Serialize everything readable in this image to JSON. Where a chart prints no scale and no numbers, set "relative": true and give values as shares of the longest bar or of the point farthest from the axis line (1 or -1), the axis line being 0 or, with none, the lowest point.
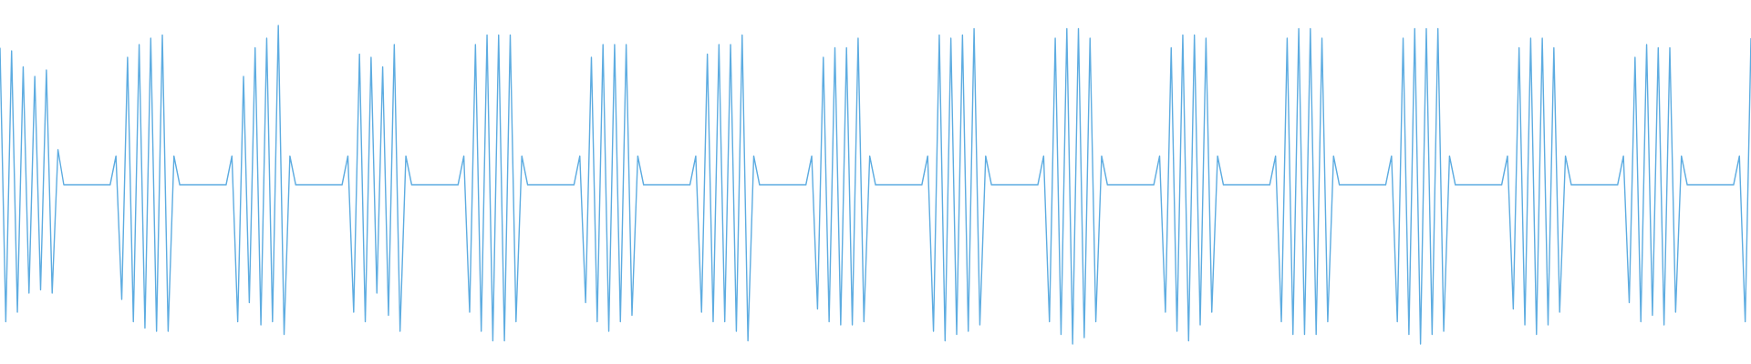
{
  "chart_data": {
    "type": "line",
    "relative": true,
    "categories": [
      null,
      null,
      null,
      null,
      null,
      null,
      null,
      null,
      null,
      null,
      null,
      null,
      null,
      null,
      null,
      null,
      null,
      null,
      null,
      null,
      null,
      null,
      null,
      null,
      null,
      null,
      null,
      null,
      null,
      null,
      null,
      null,
      null,
      null,
      null,
      null,
      null,
      null,
      null,
      null,
      null,
      null,
      null,
      null,
      null,
      null,
      null,
      null,
      null,
      null,
      null,
      null,
      null,
      null,
      null,
      null,
      null,
      null,
      null,
      null,
      null,
      null,
      null,
      null,
      null,
      null,
      null,
      null,
      null,
      null,
      null,
      null,
      null,
      null,
      null,
      null,
      null,
      null,
      null,
      null,
      null,
      null,
      null,
      null,
      null,
      null,
      null,
      null,
      null,
      null,
      null,
      null,
      null,
      null,
      null,
      null,
      null,
      null,
      null,
      null,
      null,
      null,
      null,
      null,
      null,
      null,
      null,
      null,
      null,
      null,
      null,
      null,
      null,
      null,
      null,
      null,
      null,
      null,
      null,
      null,
      null,
      null,
      null,
      null,
      null,
      null,
      null,
      null,
      null,
      null,
      null,
      null,
      null,
      null,
      null,
      null,
      null,
      null,
      null,
      null,
      null,
      null,
      null,
      null,
      null,
      null,
      null,
      null,
      null,
      null,
      null,
      null,
      null,
      null,
      null,
      null,
      null,
      null,
      null,
      null,
      null,
      null,
      null,
      null,
      null,
      null,
      null,
      null,
      null,
      null,
      null,
      null,
      null,
      null,
      null,
      null,
      null,
      null,
      null,
      null,
      null,
      null,
      null,
      null,
      null,
      null,
      null,
      null,
      null,
      null,
      null,
      null,
      null,
      null,
      null,
      null,
      null,
      null,
      null,
      null,
      null,
      null,
      null,
      null,
      null,
      null,
      null,
      null,
      null,
      null,
      null,
      null,
      null,
      null,
      null,
      null,
      null,
      null,
      null,
      null,
      null,
      null,
      null,
      null,
      null,
      null,
      null,
      null,
      null,
      null,
      null,
      null,
      null,
      null,
      null,
      null,
      null,
      null,
      null,
      null,
      null,
      null,
      null,
      null,
      null,
      null,
      null,
      null,
      null,
      null,
      null,
      null,
      null,
      null,
      null,
      null,
      null,
      null,
      null,
      null,
      null,
      null,
      null,
      null,
      null,
      null,
      null,
      null,
      null,
      null,
      null,
      null,
      null,
      null,
      null,
      null,
      null,
      null,
      null,
      null,
      null,
      null,
      null,
      null,
      null,
      null,
      null,
      null,
      null,
      null,
      null,
      null,
      null,
      null,
      null,
      null,
      null,
      null,
      null,
      null,
      null,
      null,
      null
    ],
    "series": [
      {
        "color": "#5dace1",
        "values": [
          0.93,
          0.07,
          0.92,
          0.1,
          0.87,
          0.16,
          0.84,
          0.17,
          0.86,
          0.16,
          0.61,
          0.5,
          0.5,
          0.5,
          0.5,
          0.5,
          0.5,
          0.5,
          0.5,
          0.5,
          0.59,
          0.14,
          0.9,
          0.07,
          0.94,
          0.05,
          0.96,
          0.04,
          0.97,
          0.04,
          0.59,
          0.5,
          0.5,
          0.5,
          0.5,
          0.5,
          0.5,
          0.5,
          0.5,
          0.5,
          0.59,
          0.07,
          0.84,
          0.13,
          0.93,
          0.06,
          0.96,
          0.07,
          1,
          0.03,
          0.59,
          0.5,
          0.5,
          0.5,
          0.5,
          0.5,
          0.5,
          0.5,
          0.5,
          0.5,
          0.59,
          0.1,
          0.91,
          0.07,
          0.9,
          0.16,
          0.87,
          0.09,
          0.94,
          0.04,
          0.59,
          0.5,
          0.5,
          0.5,
          0.5,
          0.5,
          0.5,
          0.5,
          0.5,
          0.5,
          0.59,
          0.1,
          0.94,
          0.04,
          0.97,
          0.01,
          0.97,
          0.01,
          0.97,
          0.07,
          0.59,
          0.5,
          0.5,
          0.5,
          0.5,
          0.5,
          0.5,
          0.5,
          0.5,
          0.5,
          0.59,
          0.13,
          0.9,
          0.07,
          0.94,
          0.04,
          0.94,
          0.07,
          0.94,
          0.09,
          0.59,
          0.5,
          0.5,
          0.5,
          0.5,
          0.5,
          0.5,
          0.5,
          0.5,
          0.5,
          0.59,
          0.1,
          0.91,
          0.07,
          0.94,
          0.07,
          0.94,
          0.04,
          0.97,
          0.01,
          0.59,
          0.5,
          0.5,
          0.5,
          0.5,
          0.5,
          0.5,
          0.5,
          0.5,
          0.5,
          0.59,
          0.11,
          0.9,
          0.07,
          0.93,
          0.06,
          0.93,
          0.06,
          0.96,
          0.07,
          0.59,
          0.5,
          0.5,
          0.5,
          0.5,
          0.5,
          0.5,
          0.5,
          0.5,
          0.5,
          0.59,
          0.04,
          0.97,
          0.01,
          0.96,
          0.03,
          0.97,
          0.04,
          0.99,
          0.06,
          0.59,
          0.5,
          0.5,
          0.5,
          0.5,
          0.5,
          0.5,
          0.5,
          0.5,
          0.5,
          0.59,
          0.07,
          0.96,
          0.03,
          0.99,
          0,
          0.99,
          0.02,
          0.96,
          0.07,
          0.59,
          0.5,
          0.5,
          0.5,
          0.5,
          0.5,
          0.5,
          0.5,
          0.5,
          0.5,
          0.59,
          0.1,
          0.93,
          0.04,
          0.97,
          0.01,
          0.97,
          0.06,
          0.96,
          0.1,
          0.59,
          0.5,
          0.5,
          0.5,
          0.5,
          0.5,
          0.5,
          0.5,
          0.5,
          0.5,
          0.59,
          0.07,
          0.96,
          0.03,
          0.99,
          0.03,
          0.99,
          0.03,
          0.96,
          0.07,
          0.59,
          0.5,
          0.5,
          0.5,
          0.5,
          0.5,
          0.5,
          0.5,
          0.5,
          0.5,
          0.59,
          0.07,
          0.96,
          0.03,
          0.99,
          0,
          0.99,
          0.03,
          0.99,
          0.04,
          0.59,
          0.5,
          0.5,
          0.5,
          0.5,
          0.5,
          0.5,
          0.5,
          0.5,
          0.5,
          0.59,
          0.11,
          0.93,
          0.06,
          0.96,
          0.03,
          0.96,
          0.06,
          0.93,
          0.1,
          0.59,
          0.5,
          0.5,
          0.5,
          0.5,
          0.5,
          0.5,
          0.5,
          0.5,
          0.5,
          0.59,
          0.13,
          0.9,
          0.07,
          0.94,
          0.09,
          0.93,
          0.06,
          0.93,
          0.1,
          0.59,
          0.5,
          0.5,
          0.5,
          0.5,
          0.5,
          0.5,
          0.5,
          0.5,
          0.5,
          0.59,
          0.07,
          0.96
        ]
      }
    ]
  }
}
